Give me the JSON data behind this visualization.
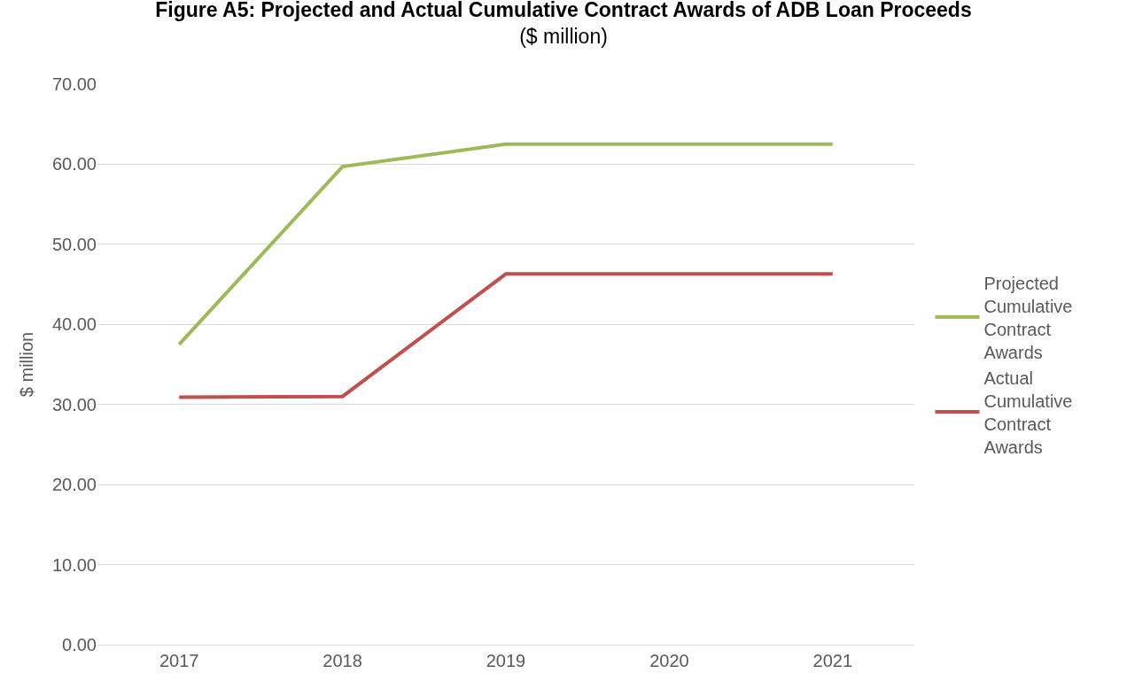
{
  "chart_data": {
    "type": "line",
    "title": "Figure A5: Projected and Actual Cumulative Contract Awards of ADB Loan Proceeds",
    "subtitle": "($ million)",
    "ylabel": "$ million",
    "categories": [
      "2017",
      "2018",
      "2019",
      "2020",
      "2021"
    ],
    "series": [
      {
        "name": "Projected Cumulative Contract Awards",
        "color": "#9bbb59",
        "values": [
          37.5,
          59.7,
          62.5,
          62.5,
          62.5
        ]
      },
      {
        "name": "Actual Cumulative Contract Awards",
        "color": "#c0504d",
        "values": [
          30.9,
          31.0,
          46.3,
          46.3,
          46.3
        ]
      }
    ],
    "ylim": [
      0,
      70
    ],
    "yticks": [
      {
        "value": 0,
        "label": "0.00"
      },
      {
        "value": 10,
        "label": "10.00"
      },
      {
        "value": 20,
        "label": "20.00"
      },
      {
        "value": 30,
        "label": "30.00"
      },
      {
        "value": 40,
        "label": "40.00"
      },
      {
        "value": 50,
        "label": "50.00"
      },
      {
        "value": 60,
        "label": "60.00"
      },
      {
        "value": 70,
        "label": "70.00"
      }
    ],
    "grid": "y",
    "legend": "right",
    "marker": "none",
    "line_style": "solid"
  }
}
